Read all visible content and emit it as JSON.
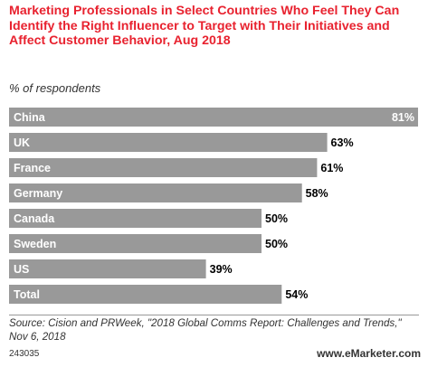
{
  "header": {
    "title": "Marketing Professionals in Select Countries Who Feel They Can Identify the Right Influencer to Target with Their Initiatives and Affect Customer Behavior, Aug 2018",
    "subtitle": "% of respondents"
  },
  "footer": {
    "source": "Source: Cision and PRWeek, \"2018 Global Comms Report: Challenges and Trends,\" Nov 6, 2018",
    "chart_id": "243035",
    "brand": "www.eMarketer.com"
  },
  "colors": {
    "title": "#e8222f",
    "bar": "#999999",
    "label_on_bar": "#ffffff",
    "value_text": "#000000"
  },
  "chart_data": {
    "type": "bar",
    "orientation": "horizontal",
    "title": "Marketing Professionals in Select Countries Who Feel They Can Identify the Right Influencer to Target with Their Initiatives and Affect Customer Behavior, Aug 2018",
    "ylabel": "% of respondents",
    "categories": [
      "China",
      "UK",
      "France",
      "Germany",
      "Canada",
      "Sweden",
      "US",
      "Total"
    ],
    "values": [
      81,
      63,
      61,
      58,
      50,
      50,
      39,
      54
    ],
    "value_labels": [
      "81%",
      "63%",
      "61%",
      "58%",
      "50%",
      "50%",
      "39%",
      "54%"
    ],
    "xlim": [
      0,
      81
    ],
    "grid": false,
    "legend": "none"
  }
}
